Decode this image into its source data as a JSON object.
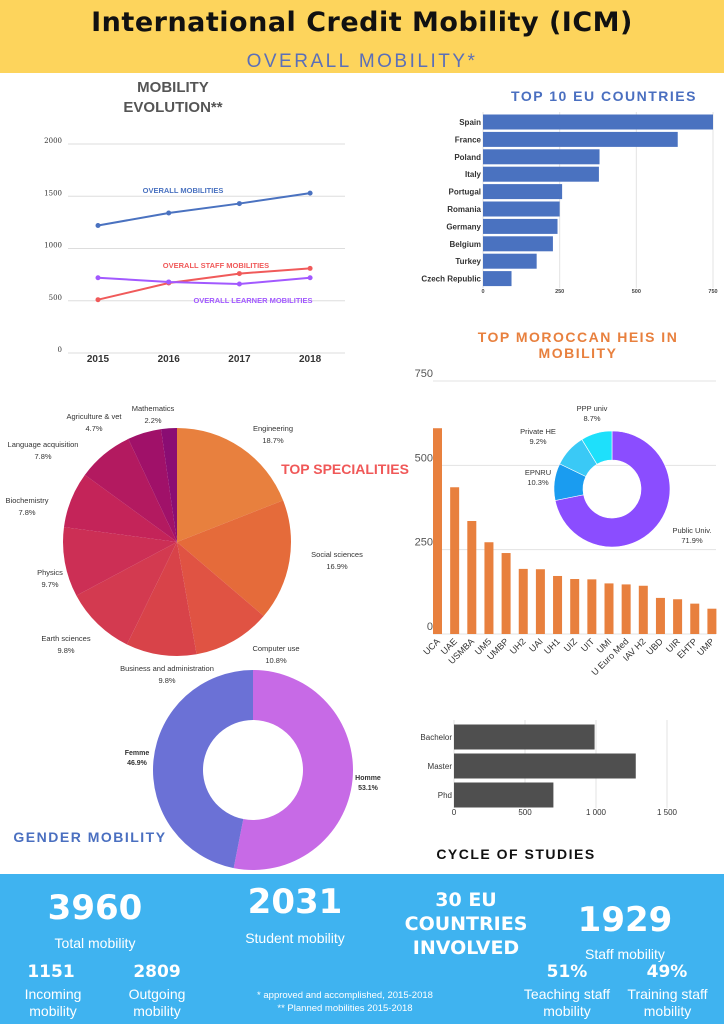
{
  "header": {
    "title": "International Credit Mobility (ICM)",
    "subtitle": "OVERALL MOBILITY*"
  },
  "colors": {
    "header_bg": "#fdd45c",
    "footer_bg": "#3fb3f0",
    "bar_blue": "#4a72c0",
    "bar_orange": "#e8803e",
    "bar_dark": "#4f4f4f",
    "heading_blue": "#4a6fc0",
    "heading_orange": "#e8803e",
    "heading_red": "#f05858"
  },
  "chart_data": [
    {
      "id": "evolution",
      "type": "line",
      "title": "MOBILITY EVOLUTION**",
      "x": [
        "2015",
        "2016",
        "2017",
        "2018"
      ],
      "yticks": [
        0,
        500,
        1000,
        1500,
        2000
      ],
      "ylim": [
        0,
        2000
      ],
      "grid": true,
      "series": [
        {
          "name": "OVERALL MOBILITIES",
          "color": "#4a72c0",
          "values": [
            1220,
            1340,
            1430,
            1530
          ]
        },
        {
          "name": "OVERALL STAFF MOBILITIES",
          "color": "#f05a5a",
          "values": [
            510,
            670,
            760,
            810
          ]
        },
        {
          "name": "OVERALL LEARNER MOBILITIES",
          "color": "#a259ff",
          "values": [
            720,
            680,
            660,
            720
          ]
        }
      ]
    },
    {
      "id": "eu",
      "type": "bar",
      "orientation": "horizontal",
      "title": "TOP 10 EU COUNTRIES",
      "categories": [
        "Spain",
        "France",
        "Poland",
        "Italy",
        "Portugal",
        "Romania",
        "Germany",
        "Belgium",
        "Turkey",
        "Czech Republic"
      ],
      "values": [
        750,
        635,
        380,
        378,
        258,
        250,
        243,
        228,
        175,
        93
      ],
      "xticks": [
        "0",
        "250",
        "500",
        "750"
      ],
      "xlim": [
        0,
        750
      ],
      "grid": true
    },
    {
      "id": "heis",
      "type": "bar",
      "title": "TOP MOROCCAN HEIS IN MOBILITY",
      "categories": [
        "UCA",
        "UAE",
        "USMBA",
        "UM5",
        "UMBP",
        "UH2",
        "UAI",
        "UH1",
        "UIZ",
        "UIT",
        "UMI",
        "U Euro Med",
        "IAV H2",
        "UBD",
        "UIR",
        "EHTP",
        "UMP"
      ],
      "values": [
        610,
        435,
        335,
        272,
        240,
        193,
        192,
        172,
        163,
        162,
        150,
        147,
        143,
        107,
        103,
        90,
        75
      ],
      "yticks": [
        "0",
        "250",
        "500",
        "750"
      ],
      "ylim": [
        0,
        750
      ],
      "grid": true
    },
    {
      "id": "heitype",
      "type": "pie",
      "style": "donut",
      "slices": [
        {
          "label": "Public Univ.",
          "pct": "71.9%",
          "value": 71.9,
          "color": "#8b4dff"
        },
        {
          "label": "EPNRU",
          "pct": "10.3%",
          "value": 10.3,
          "color": "#1a9cf0"
        },
        {
          "label": "Private HE",
          "pct": "9.2%",
          "value": 9.2,
          "color": "#3ac9f6"
        },
        {
          "label": "PPP univ",
          "pct": "8.7%",
          "value": 8.7,
          "color": "#1ee0fb"
        }
      ]
    },
    {
      "id": "specialities",
      "type": "pie",
      "title": "TOP SPECIALITIES",
      "slices": [
        {
          "label": "Engineering",
          "pct": "18.7%",
          "value": 18.7,
          "color": "#e8803e"
        },
        {
          "label": "Social sciences",
          "pct": "16.9%",
          "value": 16.9,
          "color": "#e56b3a"
        },
        {
          "label": "Computer use",
          "pct": "10.8%",
          "value": 10.8,
          "color": "#e05343"
        },
        {
          "label": "Business and administration",
          "pct": "9.8%",
          "value": 9.8,
          "color": "#d84349"
        },
        {
          "label": "Earth sciences",
          "pct": "9.8%",
          "value": 9.8,
          "color": "#d33a50"
        },
        {
          "label": "Physics",
          "pct": "9.7%",
          "value": 9.7,
          "color": "#cc2f55"
        },
        {
          "label": "Biochemistry",
          "pct": "7.8%",
          "value": 7.8,
          "color": "#c42459"
        },
        {
          "label": "Language acquisition",
          "pct": "7.8%",
          "value": 7.8,
          "color": "#b31a60"
        },
        {
          "label": "Agriculture & vet",
          "pct": "4.7%",
          "value": 4.7,
          "color": "#a01169"
        },
        {
          "label": "Mathematics",
          "pct": "2.2%",
          "value": 2.2,
          "color": "#8a0d73"
        }
      ]
    },
    {
      "id": "gender",
      "type": "pie",
      "style": "donut",
      "title": "GENDER MOBILITY",
      "slices": [
        {
          "label": "Homme",
          "pct": "53.1%",
          "value": 53.1,
          "color": "#c76ae6"
        },
        {
          "label": "Femme",
          "pct": "46.9%",
          "value": 46.9,
          "color": "#6b71d6"
        }
      ]
    },
    {
      "id": "cycle",
      "type": "bar",
      "orientation": "horizontal",
      "title": "CYCLE OF STUDIES",
      "categories": [
        "Bachelor",
        "Master",
        "Phd"
      ],
      "values": [
        990,
        1280,
        700
      ],
      "xticks": [
        "0",
        "500",
        "1 000",
        "1 500"
      ],
      "xlim": [
        0,
        1500
      ],
      "grid": true
    }
  ],
  "footer": {
    "total_value": "3960",
    "total_label": "Total mobility",
    "incoming_value": "1151",
    "incoming_label": "Incoming mobility",
    "outgoing_value": "2809",
    "outgoing_label": "Outgoing mobility",
    "student_value": "2031",
    "student_label": "Student mobility",
    "eu_line1": "30 EU",
    "eu_line2": "COUNTRIES",
    "eu_line3": "INVOLVED",
    "staff_value": "1929",
    "staff_label": "Staff mobility",
    "teaching_value": "51%",
    "teaching_label": "Teaching staff mobility",
    "training_value": "49%",
    "training_label": "Training staff mobility",
    "note1": "* approved and accomplished, 2015-2018",
    "note2": "** Planned mobilities 2015-2018"
  }
}
